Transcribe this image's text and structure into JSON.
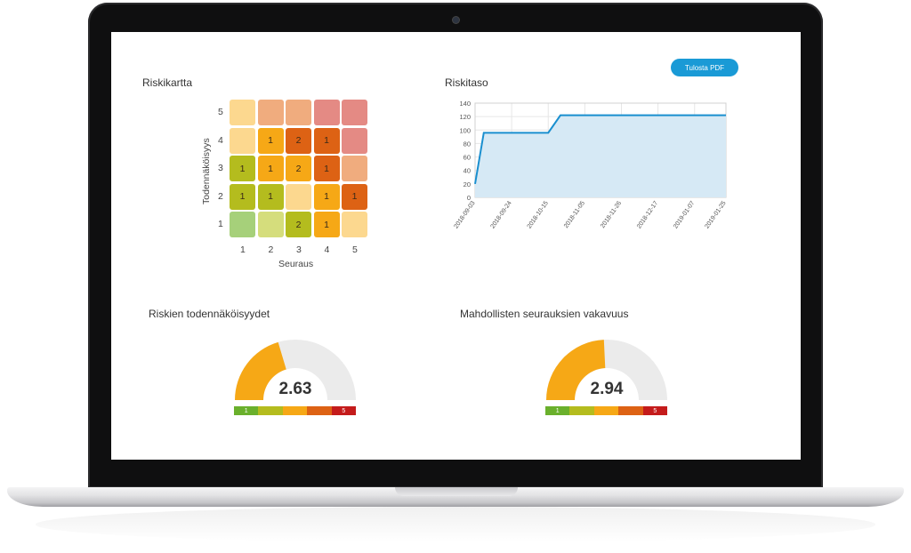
{
  "header": {
    "print_button": "Tulosta PDF"
  },
  "risk_map": {
    "title": "Riskikartta",
    "y_axis_title": "Todennäköisyys",
    "x_axis_title": "Seuraus",
    "y_ticks": [
      "5",
      "4",
      "3",
      "2",
      "1"
    ],
    "x_ticks": [
      "1",
      "2",
      "3",
      "4",
      "5"
    ],
    "rows": [
      [
        {
          "v": "",
          "c": "#fcd88f"
        },
        {
          "v": "",
          "c": "#f0ac7e"
        },
        {
          "v": "",
          "c": "#f0ac7e"
        },
        {
          "v": "",
          "c": "#e48a84"
        },
        {
          "v": "",
          "c": "#e48a84"
        }
      ],
      [
        {
          "v": "",
          "c": "#fcd88f"
        },
        {
          "v": "1",
          "c": "#f6a816"
        },
        {
          "v": "2",
          "c": "#dd6214"
        },
        {
          "v": "1",
          "c": "#dd6214"
        },
        {
          "v": "",
          "c": "#e48a84"
        }
      ],
      [
        {
          "v": "1",
          "c": "#b4bc1e"
        },
        {
          "v": "1",
          "c": "#f6a816"
        },
        {
          "v": "2",
          "c": "#f6a816"
        },
        {
          "v": "1",
          "c": "#dd6214"
        },
        {
          "v": "",
          "c": "#f0ac7e"
        }
      ],
      [
        {
          "v": "1",
          "c": "#b4bc1e"
        },
        {
          "v": "1",
          "c": "#b4bc1e"
        },
        {
          "v": "",
          "c": "#fcd88f"
        },
        {
          "v": "1",
          "c": "#f6a816"
        },
        {
          "v": "1",
          "c": "#dd6214"
        }
      ],
      [
        {
          "v": "",
          "c": "#a6d07a"
        },
        {
          "v": "",
          "c": "#d5dd7c"
        },
        {
          "v": "2",
          "c": "#b4bc1e"
        },
        {
          "v": "1",
          "c": "#f6a816"
        },
        {
          "v": "",
          "c": "#fcd88f"
        }
      ]
    ]
  },
  "risk_level": {
    "title": "Riskitaso",
    "chart_data": {
      "type": "area",
      "title": "",
      "xlabel": "",
      "ylabel": "",
      "ylim": [
        0,
        140
      ],
      "y_ticks": [
        0,
        20,
        40,
        60,
        80,
        100,
        120,
        140
      ],
      "x_ticks": [
        "2018-09-03",
        "2018-09-24",
        "2018-10-15",
        "2018-11-05",
        "2018-11-26",
        "2018-12-17",
        "2019-01-07",
        "2019-01-25"
      ],
      "series": [
        {
          "points": [
            {
              "x": "2018-09-03",
              "y": 20
            },
            {
              "x": "2018-09-08",
              "y": 96
            },
            {
              "x": "2018-10-15",
              "y": 96
            },
            {
              "x": "2018-10-22",
              "y": 122
            },
            {
              "x": "2019-01-25",
              "y": 122
            }
          ]
        }
      ],
      "grid": true,
      "color": "#1a8fcf",
      "fill": "#d6e9f5"
    }
  },
  "gauges": [
    {
      "title": "Riskien todennäköisyydet",
      "value": "2.63",
      "fraction": 0.408
    },
    {
      "title": "Mahdollisten seurauksien vakavuus",
      "value": "2.94",
      "fraction": 0.485
    }
  ],
  "scale": {
    "labels": [
      "1",
      "",
      "",
      "",
      "5"
    ],
    "colors": [
      "#6ab02c",
      "#b4bc1e",
      "#f6a816",
      "#dd6214",
      "#c41b1b"
    ]
  },
  "gauge_colors": {
    "fill": "#f6a816",
    "track": "#ebebeb"
  }
}
